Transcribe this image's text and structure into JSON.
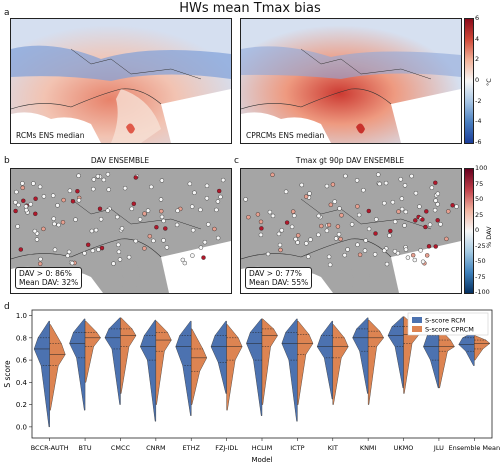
{
  "figure": {
    "title": "HWs mean Tmax bias",
    "panel_a": {
      "label": "a",
      "left_map_label": "RCMs ENS median",
      "right_map_label": "CPRCMs ENS median",
      "colorbar": {
        "ticks": [
          "6",
          "4",
          "2",
          "0",
          "-2",
          "-4",
          "-6"
        ],
        "unit": "°C"
      }
    },
    "panel_b": {
      "label": "b",
      "title": "DAV ENSEMBLE",
      "stat_line1": "DAV > 0: 86%",
      "stat_line2": "Mean DAV: 32%"
    },
    "panel_c": {
      "label": "c",
      "title": "Tmax gt 90p DAV ENSEMBLE",
      "stat_line1": "DAV > 0: 77%",
      "stat_line2": "Mean DAV: 55%"
    },
    "panel_bc_colorbar": {
      "ticks": [
        "100",
        "75",
        "50",
        "25",
        "0",
        "-25",
        "-50",
        "-75",
        "-100"
      ],
      "unit": "% DAV"
    },
    "panel_d": {
      "label": "d"
    }
  },
  "chart_data": {
    "type": "violin",
    "title": "",
    "xlabel": "Model",
    "ylabel": "S score",
    "ylim": [
      -0.1,
      1.05
    ],
    "yticks": [
      "0.0",
      "0.2",
      "0.4",
      "0.6",
      "0.8",
      "1.0"
    ],
    "legend_position": "top-right",
    "colors": {
      "S-score RCM": "#4c72b0",
      "S-score CPRCM": "#dd8452"
    },
    "categories": [
      "BCCR-AUTH",
      "BTU",
      "CMCC",
      "CNRM",
      "ETHZ",
      "FZJ-IDL",
      "HCLIM",
      "ICTP",
      "KIT",
      "KNMI",
      "UKMO",
      "JLU",
      "Ensemble Mean"
    ],
    "series": [
      {
        "name": "S-score RCM",
        "min": [
          0.0,
          0.15,
          0.2,
          0.05,
          0.1,
          0.3,
          0.1,
          0.05,
          0.25,
          0.3,
          0.35,
          0.35,
          0.55
        ],
        "q1": [
          0.55,
          0.62,
          0.7,
          0.6,
          0.55,
          0.58,
          0.6,
          0.6,
          0.62,
          0.68,
          0.72,
          0.6,
          0.68
        ],
        "median": [
          0.7,
          0.75,
          0.8,
          0.72,
          0.72,
          0.72,
          0.75,
          0.75,
          0.72,
          0.8,
          0.82,
          0.72,
          0.74
        ],
        "q3": [
          0.8,
          0.85,
          0.88,
          0.82,
          0.82,
          0.82,
          0.85,
          0.85,
          0.82,
          0.88,
          0.9,
          0.82,
          0.8
        ],
        "max": [
          0.95,
          0.97,
          0.98,
          0.96,
          0.95,
          0.95,
          0.97,
          0.97,
          0.95,
          0.98,
          0.99,
          0.95,
          0.85
        ]
      },
      {
        "name": "S-score CPRCM",
        "min": [
          0.15,
          0.4,
          0.3,
          0.2,
          0.2,
          0.15,
          0.2,
          0.2,
          0.2,
          0.2,
          0.3,
          0.35,
          0.6
        ],
        "q1": [
          0.55,
          0.72,
          0.72,
          0.68,
          0.5,
          0.6,
          0.72,
          0.65,
          0.62,
          0.72,
          0.75,
          0.68,
          0.7
        ],
        "median": [
          0.65,
          0.8,
          0.82,
          0.78,
          0.62,
          0.72,
          0.82,
          0.75,
          0.72,
          0.8,
          0.83,
          0.72,
          0.75
        ],
        "q3": [
          0.75,
          0.85,
          0.88,
          0.85,
          0.7,
          0.8,
          0.88,
          0.83,
          0.8,
          0.86,
          0.9,
          0.78,
          0.78
        ],
        "max": [
          0.92,
          0.95,
          0.98,
          0.95,
          0.88,
          0.92,
          0.97,
          0.95,
          0.92,
          0.96,
          0.99,
          0.88,
          0.82
        ]
      }
    ]
  }
}
